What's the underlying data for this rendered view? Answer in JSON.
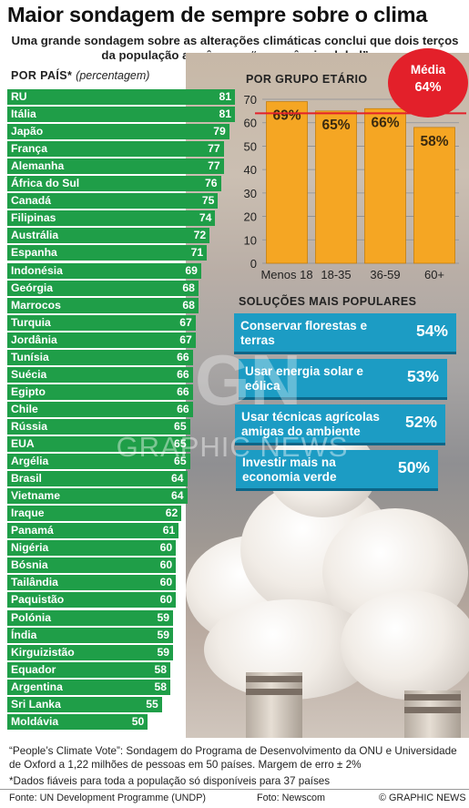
{
  "title": "Maior sondagem de sempre sobre o clima",
  "subtitle": "Uma grande sondagem sobre as alterações climáticas conclui que dois terços da população as vê como “emergência global”",
  "country_header": "Por País",
  "country_header_mark": "*",
  "country_header_unit": "(percentagem)",
  "age_header": "Por Grupo Etário",
  "average": {
    "label": "Média",
    "value": "64%"
  },
  "solutions_header": "Soluções Mais Populares",
  "solutions": [
    {
      "label": "Conservar florestas e terras",
      "value": "54%"
    },
    {
      "label": "Usar energia solar e eólica",
      "value": "53%"
    },
    {
      "label": "Usar técnicas agrícolas amigas do ambiente",
      "value": "52%"
    },
    {
      "label": "Investir mais na economia verde",
      "value": "50%"
    }
  ],
  "watermark": "GRAPHIC NEWS",
  "watermark_logo": "GN",
  "footnotes": [
    "“People’s Climate Vote”: Sondagem do Programa de Desenvolvimento da ONU e Universidade de Oxford a 1,22 milhões de pessoas em 50 países. Margem de erro ± 2%",
    "*Dados fiáveis para toda a população só disponíveis para 37 países"
  ],
  "source_left": "Fonte: UN Development Programme (UNDP)",
  "source_mid": "Foto: Newscom",
  "source_right": "© GRAPHIC NEWS",
  "colors": {
    "country_bar": "#1f9e48",
    "age_bar": "#f5a623",
    "average_badge": "#e3202a",
    "solution_box": "#1c9cc4"
  },
  "chart_data": [
    {
      "type": "bar",
      "orientation": "horizontal",
      "categories": [
        "RU",
        "Itália",
        "Japão",
        "França",
        "Alemanha",
        "África do Sul",
        "Canadá",
        "Filipinas",
        "Austrália",
        "Espanha",
        "Indonésia",
        "Geórgia",
        "Marrocos",
        "Turquia",
        "Jordânia",
        "Tunísia",
        "Suécia",
        "Egipto",
        "Chile",
        "Rússia",
        "EUA",
        "Argélia",
        "Brasil",
        "Vietname",
        "Iraque",
        "Panamá",
        "Nigéria",
        "Bósnia",
        "Tailândia",
        "Paquistão",
        "Polónia",
        "Índia",
        "Kirguizistão",
        "Equador",
        "Argentina",
        "Sri Lanka",
        "Moldávia"
      ],
      "values": [
        81,
        81,
        79,
        77,
        77,
        76,
        75,
        74,
        72,
        71,
        69,
        68,
        68,
        67,
        67,
        66,
        66,
        66,
        66,
        65,
        65,
        65,
        64,
        64,
        62,
        61,
        60,
        60,
        60,
        60,
        59,
        59,
        59,
        58,
        58,
        55,
        50
      ]
    },
    {
      "type": "bar",
      "categories": [
        "Menos 18",
        "18-35",
        "36-59",
        "60+"
      ],
      "values": [
        69,
        65,
        66,
        58
      ],
      "value_labels": [
        "69%",
        "65%",
        "66%",
        "58%"
      ],
      "yticks": [
        0,
        10,
        20,
        30,
        40,
        50,
        60,
        70
      ],
      "ylim": [
        0,
        70
      ],
      "reference_line": 64
    }
  ]
}
